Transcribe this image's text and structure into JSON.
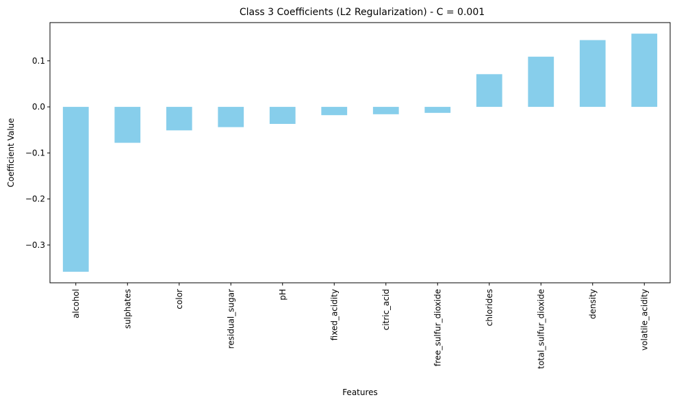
{
  "chart_data": {
    "type": "bar",
    "title": "Class 3 Coefficients (L2 Regularization) - C = 0.001",
    "xlabel": "Features",
    "ylabel": "Coefficient Value",
    "categories": [
      "alcohol",
      "sulphates",
      "color",
      "residual_sugar",
      "pH",
      "fixed_acidity",
      "citric_acid",
      "free_sulfur_dioxide",
      "chlorides",
      "total_sulfur_dioxide",
      "density",
      "volatile_acidity"
    ],
    "values": [
      -0.358,
      -0.078,
      -0.051,
      -0.044,
      -0.037,
      -0.018,
      -0.016,
      -0.013,
      0.071,
      0.109,
      0.145,
      0.159
    ],
    "ylim": [
      -0.382,
      0.183
    ],
    "yticks": [
      -0.3,
      -0.2,
      -0.1,
      0.0,
      0.1
    ],
    "ytick_labels": [
      "−0.3",
      "−0.2",
      "−0.1",
      "0.0",
      "0.1"
    ],
    "bar_color": "#87ceeb",
    "grid": false,
    "legend": "none"
  }
}
